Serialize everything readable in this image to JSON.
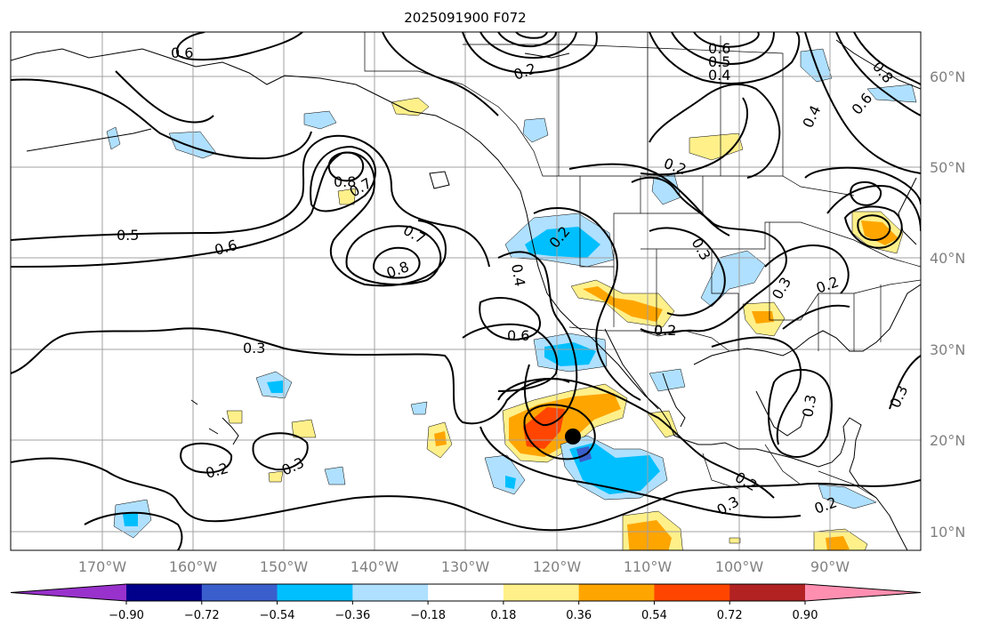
{
  "title": "2025091900 F072",
  "longitude_labels": [
    "170°W",
    "160°W",
    "150°W",
    "140°W",
    "130°W",
    "120°W",
    "110°W",
    "100°W",
    "90°W"
  ],
  "latitude_labels": [
    "60°N",
    "50°N",
    "40°N",
    "30°N",
    "20°N",
    "10°N"
  ],
  "colorbar": {
    "tick_labels": [
      "−0.90",
      "−0.72",
      "−0.54",
      "−0.36",
      "−0.18",
      "0.18",
      "0.36",
      "0.54",
      "0.72",
      "0.90"
    ],
    "colors": [
      "#9932cc",
      "#00008b",
      "#3a5fcd",
      "#00bfff",
      "#afe0ff",
      "#ffffff",
      "#fff08a",
      "#ffa500",
      "#ff4500",
      "#b22222",
      "#ff8fb0"
    ]
  },
  "contour_labels": [
    {
      "id": "c1",
      "text": "0.6"
    },
    {
      "id": "c2",
      "text": "0.8"
    },
    {
      "id": "c3",
      "text": "0.7"
    },
    {
      "id": "c4",
      "text": "0.5"
    },
    {
      "id": "c5",
      "text": "0.6"
    },
    {
      "id": "c6",
      "text": "0.7"
    },
    {
      "id": "c7",
      "text": "0.8"
    },
    {
      "id": "c8",
      "text": "0.3"
    },
    {
      "id": "c9",
      "text": "0.2"
    },
    {
      "id": "c10",
      "text": "0.3"
    },
    {
      "id": "c11",
      "text": "0.6"
    },
    {
      "id": "c12",
      "text": "0.4"
    },
    {
      "id": "c13",
      "text": "0.2"
    },
    {
      "id": "c14",
      "text": "0.2"
    },
    {
      "id": "c15",
      "text": "0.3"
    },
    {
      "id": "c16",
      "text": "0.2"
    },
    {
      "id": "c17",
      "text": "0.3"
    },
    {
      "id": "c18",
      "text": "0.3"
    },
    {
      "id": "c19",
      "text": "0.2"
    },
    {
      "id": "c20",
      "text": "0.3"
    },
    {
      "id": "c21",
      "text": "0.2"
    },
    {
      "id": "c22",
      "text": "0.6"
    },
    {
      "id": "c23",
      "text": "0.5"
    },
    {
      "id": "c24",
      "text": "0.4"
    },
    {
      "id": "c25",
      "text": "0.8"
    },
    {
      "id": "c26",
      "text": "0.6"
    },
    {
      "id": "c27",
      "text": "0.4"
    },
    {
      "id": "c28",
      "text": "0.2"
    },
    {
      "id": "c29",
      "text": "0.3"
    },
    {
      "id": "c30",
      "text": "0.2"
    }
  ]
}
